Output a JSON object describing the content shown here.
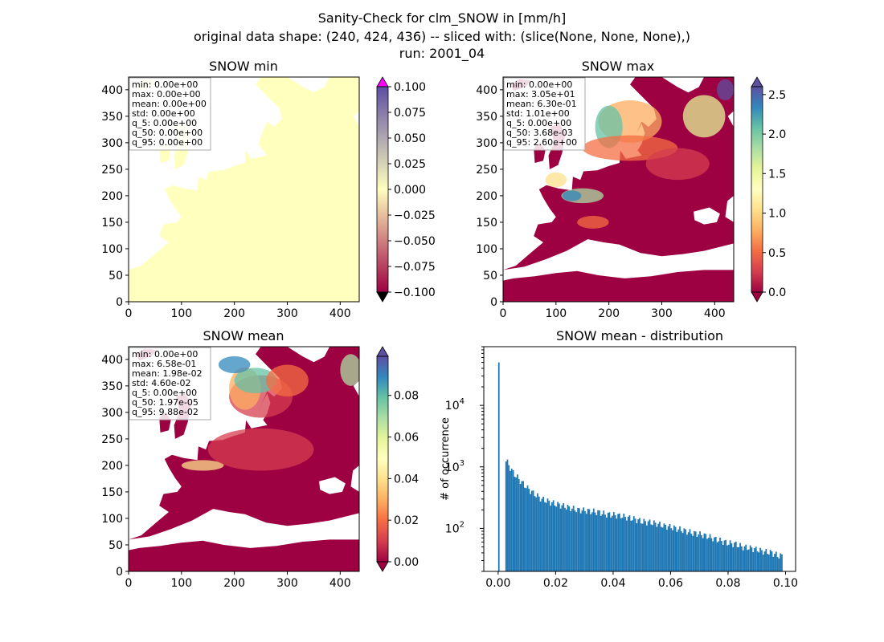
{
  "figure": {
    "title_lines": [
      "Sanity-Check for clm_SNOW in [mm/h]",
      "original data shape: (240, 424, 436) -- sliced with: (slice(None, None, None),)",
      "run: 2001_04"
    ]
  },
  "colors": {
    "land_min": "#ffffbe",
    "ocean": "#ffffff",
    "over_min": "#ff00ff",
    "under": "#000000",
    "spine": "#000000",
    "bar": "#1f77b4",
    "spectral": [
      "#9e0142",
      "#d53e4f",
      "#f46d43",
      "#fdae61",
      "#fee08b",
      "#ffffbf",
      "#e6f598",
      "#abdda4",
      "#66c2a5",
      "#3288bd",
      "#5e4fa2"
    ]
  },
  "panels": [
    {
      "title": "SNOW min",
      "map_axes": {
        "xlim": [
          0,
          436
        ],
        "ylim": [
          0,
          424
        ],
        "xticks": [
          "0",
          "100",
          "200",
          "300",
          "400"
        ],
        "yticks": [
          "0",
          "50",
          "100",
          "150",
          "200",
          "250",
          "300",
          "350",
          "400"
        ]
      },
      "stats": [
        "min: 0.00e+00",
        "max: 0.00e+00",
        "mean: 0.00e+00",
        "std: 0.00e+00",
        "q_5: 0.00e+00",
        "q_50: 0.00e+00",
        "q_95: 0.00e+00"
      ],
      "colorbar": {
        "range": [
          -0.1,
          0.1
        ],
        "ticks": [
          "0.100",
          "0.075",
          "0.050",
          "0.025",
          "0.000",
          "−0.025",
          "−0.050",
          "−0.075",
          "−0.100"
        ],
        "extend": "both"
      }
    },
    {
      "title": "SNOW max",
      "map_axes": {
        "xlim": [
          0,
          436
        ],
        "ylim": [
          0,
          424
        ],
        "xticks": [
          "0",
          "100",
          "200",
          "300",
          "400"
        ],
        "yticks": [
          "0",
          "50",
          "100",
          "150",
          "200",
          "250",
          "300",
          "350",
          "400"
        ]
      },
      "stats": [
        "min: 0.00e+00",
        "max: 3.05e+01",
        "mean: 6.30e-01",
        "std: 1.01e+00",
        "q_5: 0.00e+00",
        "q_50: 3.68e-03",
        "q_95: 2.60e+00"
      ],
      "colorbar": {
        "range": [
          0,
          2.6
        ],
        "ticks": [
          "2.5",
          "2.0",
          "1.5",
          "1.0",
          "0.5",
          "0.0"
        ],
        "extend": "both"
      }
    },
    {
      "title": "SNOW mean",
      "map_axes": {
        "xlim": [
          0,
          436
        ],
        "ylim": [
          0,
          424
        ],
        "xticks": [
          "0",
          "100",
          "200",
          "300",
          "400"
        ],
        "yticks": [
          "0",
          "50",
          "100",
          "150",
          "200",
          "250",
          "300",
          "350",
          "400"
        ]
      },
      "stats": [
        "min: 0.00e+00",
        "max: 6.58e-01",
        "mean: 1.98e-02",
        "std: 4.60e-02",
        "q_5: 0.00e+00",
        "q_50: 1.97e-05",
        "q_95: 9.88e-02"
      ],
      "colorbar": {
        "range": [
          0,
          0.0988
        ],
        "ticks": [
          "0.08",
          "0.06",
          "0.04",
          "0.02",
          "0.00"
        ],
        "extend": "both"
      }
    }
  ],
  "chart_data": {
    "type": "bar",
    "title": "SNOW mean - distribution",
    "xlabel": "",
    "ylabel": "# of occurrence",
    "yscale": "log",
    "xlim": [
      -0.005,
      0.1035
    ],
    "ylim": [
      20,
      90000
    ],
    "xticks": [
      "0.00",
      "0.02",
      "0.04",
      "0.06",
      "0.08",
      "0.10"
    ],
    "yticks": [
      "10^2",
      "10^3",
      "10^4"
    ],
    "bin_width": 0.000494,
    "x": [
      0.0,
      0.0025,
      0.005,
      0.0075,
      0.01,
      0.0125,
      0.015,
      0.0175,
      0.02,
      0.0225,
      0.025,
      0.0275,
      0.03,
      0.0325,
      0.035,
      0.0375,
      0.04,
      0.0425,
      0.045,
      0.0475,
      0.05,
      0.0525,
      0.055,
      0.0575,
      0.06,
      0.0625,
      0.065,
      0.0675,
      0.07,
      0.0725,
      0.075,
      0.0775,
      0.08,
      0.0825,
      0.085,
      0.0875,
      0.09,
      0.0925,
      0.095,
      0.0975
    ],
    "values": [
      50000,
      1300,
      800,
      600,
      450,
      360,
      300,
      270,
      250,
      230,
      215,
      200,
      195,
      190,
      180,
      170,
      165,
      160,
      150,
      140,
      130,
      125,
      120,
      110,
      105,
      98,
      90,
      85,
      80,
      75,
      68,
      62,
      58,
      55,
      50,
      48,
      45,
      42,
      40,
      36
    ]
  }
}
